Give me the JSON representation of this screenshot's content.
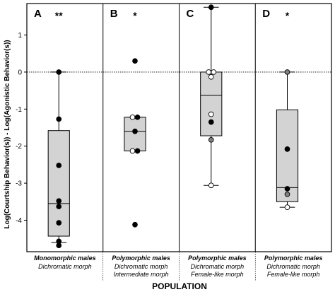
{
  "chart_data": {
    "type": "box",
    "ylabel": "Log(Courtship Behavior(s)) - Log(Agonistic Behavior(s))",
    "xlabel": "POPULATION",
    "ylim": [
      -4.85,
      1.85
    ],
    "yticks": [
      1,
      0,
      -1,
      -2,
      -3,
      -4
    ],
    "reference_line": 0,
    "panels": [
      {
        "letter": "A",
        "significance": "**",
        "group_title": "Monomorphic males",
        "morph_lines": [
          "Dichromatic morph"
        ],
        "box": {
          "whisker_low": -4.6,
          "q1": -4.43,
          "median": -3.55,
          "q3": -1.58,
          "whisker_high": 0.0
        },
        "points": [
          {
            "y": 0.0,
            "fill": "#000000"
          },
          {
            "y": -1.27,
            "fill": "#000000"
          },
          {
            "y": -2.52,
            "fill": "#000000"
          },
          {
            "y": -3.48,
            "fill": "#000000"
          },
          {
            "y": -3.63,
            "fill": "#000000"
          },
          {
            "y": -4.07,
            "fill": "#000000"
          },
          {
            "y": -4.57,
            "fill": "#000000"
          },
          {
            "y": -4.68,
            "fill": "#000000"
          }
        ]
      },
      {
        "letter": "B",
        "significance": "*",
        "group_title": "Polymorphic males",
        "morph_lines": [
          "Dichromatic morph",
          "Intermediate morph"
        ],
        "box": {
          "whisker_low": -2.13,
          "q1": -2.13,
          "median": -1.6,
          "q3": -1.22,
          "whisker_high": -1.22
        },
        "points": [
          {
            "y": 0.3,
            "fill": "#000000"
          },
          {
            "y": -1.22,
            "fill": "#ffffff"
          },
          {
            "y": -1.22,
            "fill": "#000000"
          },
          {
            "y": -1.6,
            "fill": "#000000"
          },
          {
            "y": -2.13,
            "fill": "#ffffff"
          },
          {
            "y": -2.13,
            "fill": "#000000"
          },
          {
            "y": -4.12,
            "fill": "#000000"
          }
        ]
      },
      {
        "letter": "C",
        "significance": "",
        "group_title": "Polymorphic males",
        "morph_lines": [
          "Dichromatic morph",
          "Female-like morph"
        ],
        "box": {
          "whisker_low": -3.06,
          "q1": -1.72,
          "median": -0.63,
          "q3": 0.0,
          "whisker_high": 1.75
        },
        "points": [
          {
            "y": 1.75,
            "fill": "#000000"
          },
          {
            "y": 0.0,
            "fill": "#ffffff"
          },
          {
            "y": 0.0,
            "fill": "#ffffff"
          },
          {
            "y": -0.13,
            "fill": "#ffffff"
          },
          {
            "y": -1.14,
            "fill": "#ffffff"
          },
          {
            "y": -1.35,
            "fill": "#000000"
          },
          {
            "y": -1.83,
            "fill": "#808080"
          },
          {
            "y": -3.06,
            "fill": "#ffffff"
          }
        ]
      },
      {
        "letter": "D",
        "significance": "*",
        "group_title": "Polymorphic males",
        "morph_lines": [
          "Dichromatic morph",
          "Female-like morph"
        ],
        "box": {
          "whisker_low": -3.65,
          "q1": -3.5,
          "median": -3.12,
          "q3": -1.02,
          "whisker_high": 0.0
        },
        "points": [
          {
            "y": 0.0,
            "fill": "#808080"
          },
          {
            "y": -2.08,
            "fill": "#000000"
          },
          {
            "y": -3.15,
            "fill": "#000000"
          },
          {
            "y": -3.3,
            "fill": "#808080"
          },
          {
            "y": -3.65,
            "fill": "#ffffff"
          }
        ]
      }
    ],
    "colors": {
      "box_fill": "#d3d3d3",
      "outline": "#000000"
    }
  }
}
